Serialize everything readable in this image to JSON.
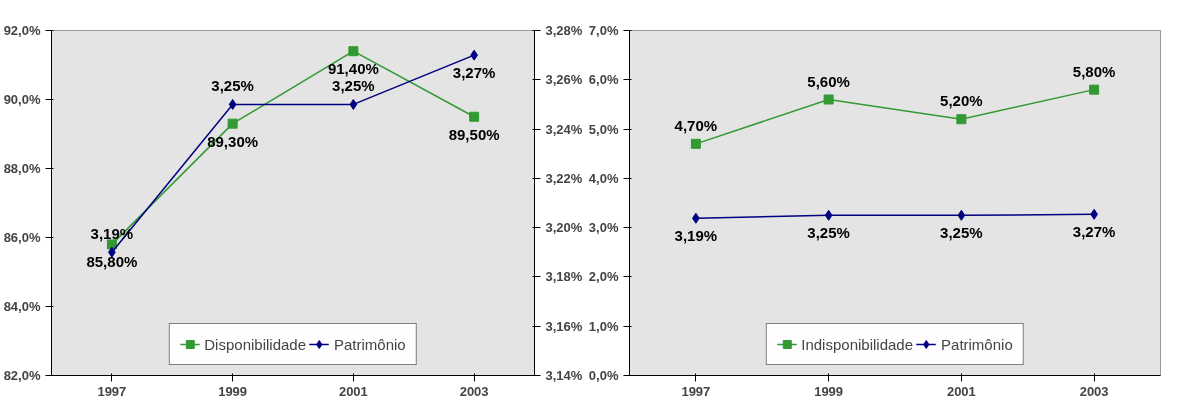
{
  "chart_data": [
    {
      "type": "line",
      "categories": [
        "1997",
        "1999",
        "2001",
        "2003"
      ],
      "series": [
        {
          "name": "Disponibilidade",
          "color": "#339933",
          "marker": "square",
          "values": [
            85.8,
            89.3,
            91.4,
            89.5
          ],
          "value_labels": [
            "85,80%",
            "89,30%",
            "91,40%",
            "89,50%"
          ]
        },
        {
          "name": "Patrimônio",
          "color": "#000080",
          "marker": "diamond",
          "axis": "y2",
          "values": [
            3.19,
            3.25,
            3.25,
            3.27
          ],
          "value_labels": [
            "3,19%",
            "3,25%",
            "3,25%",
            "3,27%"
          ]
        }
      ],
      "ylim": [
        82,
        92
      ],
      "yticks": [
        {
          "value": 82,
          "label": "82,0%"
        },
        {
          "value": 84,
          "label": "84,0%"
        },
        {
          "value": 86,
          "label": "86,0%"
        },
        {
          "value": 88,
          "label": "88,0%"
        },
        {
          "value": 90,
          "label": "90,0%"
        },
        {
          "value": 92,
          "label": "92,0%"
        }
      ],
      "y2lim": [
        3.14,
        3.28
      ],
      "y2ticks": [
        {
          "value": 3.14,
          "label": "3,14%"
        },
        {
          "value": 3.16,
          "label": "3,16%"
        },
        {
          "value": 3.18,
          "label": "3,18%"
        },
        {
          "value": 3.2,
          "label": "3,20%"
        },
        {
          "value": 3.22,
          "label": "3,22%"
        },
        {
          "value": 3.24,
          "label": "3,24%"
        },
        {
          "value": 3.26,
          "label": "3,26%"
        },
        {
          "value": 3.28,
          "label": "3,28%"
        }
      ],
      "grid": false,
      "legend": "bottom"
    },
    {
      "type": "line",
      "categories": [
        "1997",
        "1999",
        "2001",
        "2003"
      ],
      "series": [
        {
          "name": "Indisponibilidade",
          "color": "#339933",
          "marker": "square",
          "values": [
            4.7,
            5.6,
            5.2,
            5.8
          ],
          "value_labels": [
            "4,70%",
            "5,60%",
            "5,20%",
            "5,80%"
          ]
        },
        {
          "name": "Patrimônio",
          "color": "#000080",
          "marker": "diamond",
          "values": [
            3.19,
            3.25,
            3.25,
            3.27
          ],
          "value_labels": [
            "3,19%",
            "3,25%",
            "3,25%",
            "3,27%"
          ]
        }
      ],
      "ylim": [
        0,
        7
      ],
      "yticks": [
        {
          "value": 0,
          "label": "0,0%"
        },
        {
          "value": 1,
          "label": "1,0%"
        },
        {
          "value": 2,
          "label": "2,0%"
        },
        {
          "value": 3,
          "label": "3,0%"
        },
        {
          "value": 4,
          "label": "4,0%"
        },
        {
          "value": 5,
          "label": "5,0%"
        },
        {
          "value": 6,
          "label": "6,0%"
        },
        {
          "value": 7,
          "label": "7,0%"
        }
      ],
      "grid": false,
      "legend": "bottom"
    }
  ]
}
